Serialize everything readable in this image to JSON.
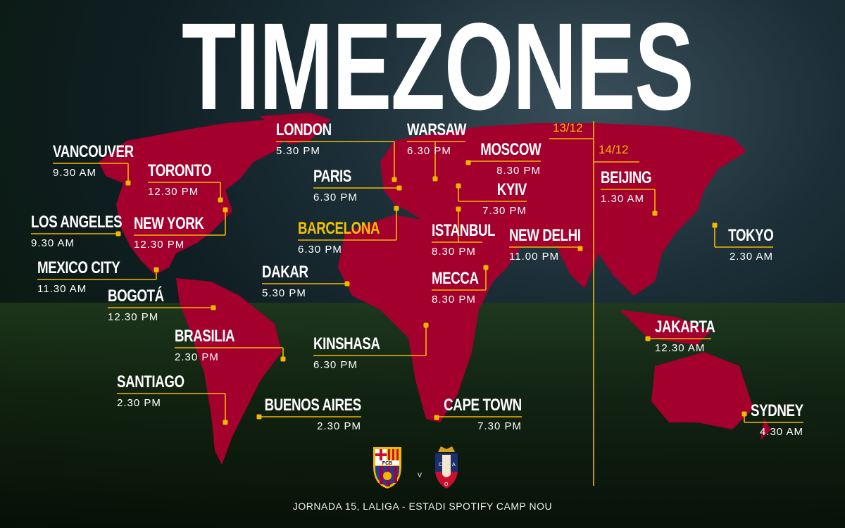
{
  "title": "TIMEZONES",
  "colors": {
    "map": "#a3002e",
    "accent": "#f2b800",
    "highlight": "#f2c200",
    "text": "#ffffff"
  },
  "dates": {
    "left": "13/12",
    "right": "14/12"
  },
  "cities": [
    {
      "name": "VANCOUVER",
      "time": "9.30 AM"
    },
    {
      "name": "TORONTO",
      "time": "12.30 PM"
    },
    {
      "name": "LOS ANGELES",
      "time": "9.30 AM"
    },
    {
      "name": "NEW YORK",
      "time": "12.30 PM"
    },
    {
      "name": "MEXICO CITY",
      "time": "11.30 AM"
    },
    {
      "name": "BOGOTÁ",
      "time": "12.30 PM"
    },
    {
      "name": "BRASILIA",
      "time": "2.30 PM"
    },
    {
      "name": "SANTIAGO",
      "time": "2.30 PM"
    },
    {
      "name": "BUENOS AIRES",
      "time": "2.30 PM"
    },
    {
      "name": "LONDON",
      "time": "5.30 PM"
    },
    {
      "name": "PARIS",
      "time": "6.30 PM"
    },
    {
      "name": "BARCELONA",
      "time": "6.30 PM",
      "highlight": true
    },
    {
      "name": "DAKAR",
      "time": "5.30 PM"
    },
    {
      "name": "KINSHASA",
      "time": "6.30 PM"
    },
    {
      "name": "CAPE TOWN",
      "time": "7.30 PM"
    },
    {
      "name": "WARSAW",
      "time": "6.30 PM"
    },
    {
      "name": "MOSCOW",
      "time": "8.30 PM"
    },
    {
      "name": "KYIV",
      "time": "7.30 PM"
    },
    {
      "name": "ISTANBUL",
      "time": "8.30 PM"
    },
    {
      "name": "MECCA",
      "time": "8.30 PM"
    },
    {
      "name": "NEW DELHI",
      "time": "11.00 PM"
    },
    {
      "name": "BEIJING",
      "time": "1.30 AM"
    },
    {
      "name": "TOKYO",
      "time": "2.30 AM"
    },
    {
      "name": "JAKARTA",
      "time": "12.30 AM"
    },
    {
      "name": "SYDNEY",
      "time": "4.30 AM"
    }
  ],
  "match": {
    "home_crest": "FCB",
    "away_crest": "CAO",
    "vs": "v",
    "footer": "JORNADA 15, LALIGA - ESTADI SPOTIFY CAMP NOU"
  }
}
